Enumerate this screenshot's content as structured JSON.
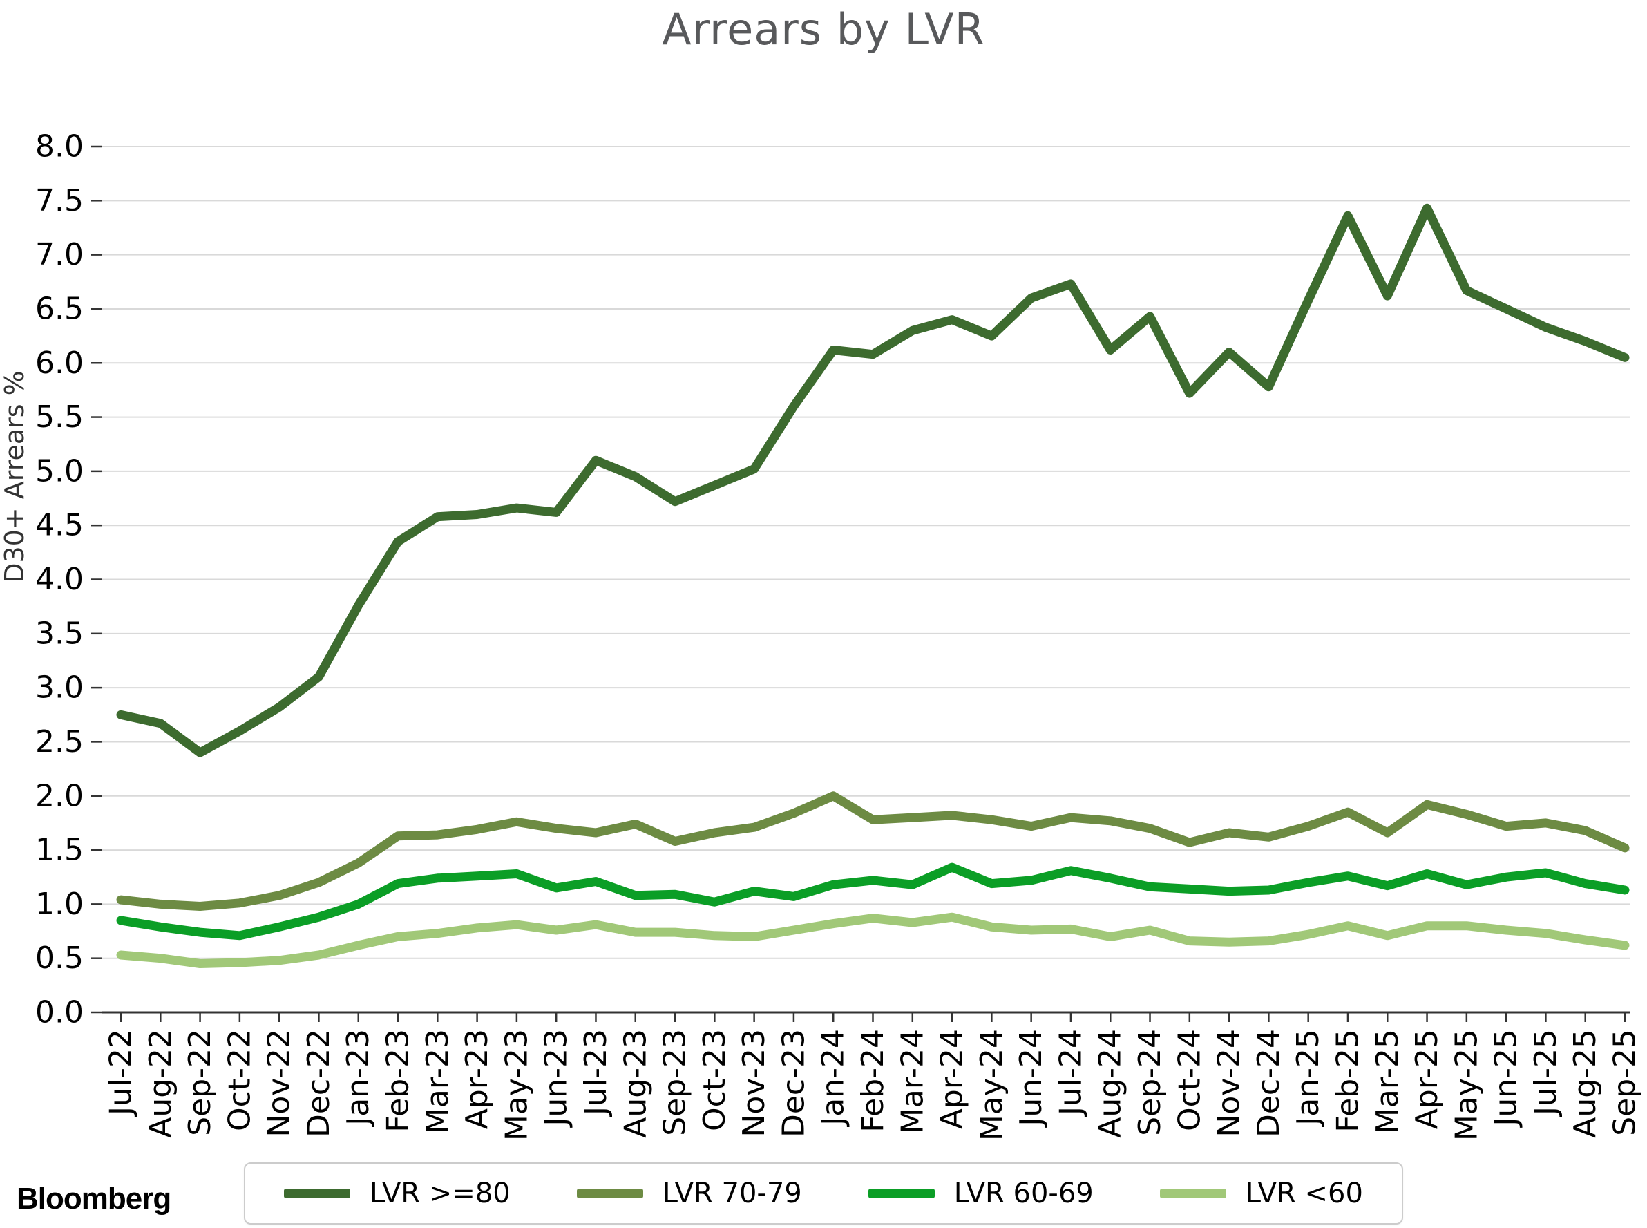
{
  "title": "Arrears by LVR",
  "y_axis_label": "D30+ Arrears %",
  "branding": "Bloomberg",
  "colors": {
    "title_text": "#58595b",
    "axis_text": "#000000",
    "gridline": "#d9d9d9",
    "axis_spine": "#333333",
    "legend_border": "#cccccc",
    "background": "#ffffff"
  },
  "chart_data": {
    "type": "line",
    "title": "Arrears by LVR",
    "xlabel": "",
    "ylabel": "D30+ Arrears %",
    "ylim": [
      0.0,
      8.0
    ],
    "ytick_step": 0.5,
    "grid": true,
    "legend_position": "bottom",
    "categories": [
      "Jul-22",
      "Aug-22",
      "Sep-22",
      "Oct-22",
      "Nov-22",
      "Dec-22",
      "Jan-23",
      "Feb-23",
      "Mar-23",
      "Apr-23",
      "May-23",
      "Jun-23",
      "Jul-23",
      "Aug-23",
      "Sep-23",
      "Oct-23",
      "Nov-23",
      "Dec-23",
      "Jan-24",
      "Feb-24",
      "Mar-24",
      "Apr-24",
      "May-24",
      "Jun-24",
      "Jul-24",
      "Aug-24",
      "Sep-24",
      "Oct-24",
      "Nov-24",
      "Dec-24",
      "Jan-25",
      "Feb-25",
      "Mar-25",
      "Apr-25",
      "May-25",
      "Jun-25",
      "Jul-25",
      "Aug-25",
      "Sep-25"
    ],
    "series": [
      {
        "name": "LVR >=80",
        "color": "#3d6b2f",
        "values": [
          2.75,
          2.67,
          2.4,
          2.6,
          2.82,
          3.1,
          3.76,
          4.35,
          4.58,
          4.6,
          4.66,
          4.62,
          5.1,
          4.95,
          4.72,
          4.87,
          5.02,
          5.6,
          6.12,
          6.08,
          6.3,
          6.4,
          6.25,
          6.6,
          6.73,
          6.12,
          6.43,
          5.72,
          6.1,
          5.78,
          6.58,
          7.36,
          6.62,
          7.43,
          6.67,
          6.5,
          6.33,
          6.2,
          6.05
        ]
      },
      {
        "name": "LVR 70-79",
        "color": "#6d8b43",
        "values": [
          1.04,
          1.0,
          0.98,
          1.01,
          1.08,
          1.2,
          1.38,
          1.63,
          1.64,
          1.69,
          1.76,
          1.7,
          1.66,
          1.74,
          1.58,
          1.66,
          1.71,
          1.84,
          2.0,
          1.78,
          1.8,
          1.82,
          1.78,
          1.72,
          1.8,
          1.77,
          1.7,
          1.57,
          1.66,
          1.62,
          1.72,
          1.85,
          1.66,
          1.92,
          1.83,
          1.72,
          1.75,
          1.68,
          1.52
        ]
      },
      {
        "name": "LVR 60-69",
        "color": "#0b9e26",
        "values": [
          0.85,
          0.79,
          0.74,
          0.71,
          0.79,
          0.88,
          1.0,
          1.19,
          1.24,
          1.26,
          1.28,
          1.15,
          1.21,
          1.08,
          1.09,
          1.02,
          1.12,
          1.07,
          1.18,
          1.22,
          1.18,
          1.34,
          1.19,
          1.22,
          1.31,
          1.24,
          1.16,
          1.14,
          1.12,
          1.13,
          1.2,
          1.26,
          1.17,
          1.28,
          1.18,
          1.25,
          1.29,
          1.19,
          1.13
        ]
      },
      {
        "name": "LVR <60",
        "color": "#a1c878",
        "values": [
          0.53,
          0.5,
          0.45,
          0.46,
          0.48,
          0.53,
          0.62,
          0.7,
          0.73,
          0.78,
          0.81,
          0.76,
          0.81,
          0.74,
          0.74,
          0.71,
          0.7,
          0.76,
          0.82,
          0.87,
          0.83,
          0.88,
          0.79,
          0.76,
          0.77,
          0.7,
          0.76,
          0.66,
          0.65,
          0.66,
          0.72,
          0.8,
          0.71,
          0.8,
          0.8,
          0.76,
          0.73,
          0.67,
          0.62
        ]
      }
    ]
  }
}
